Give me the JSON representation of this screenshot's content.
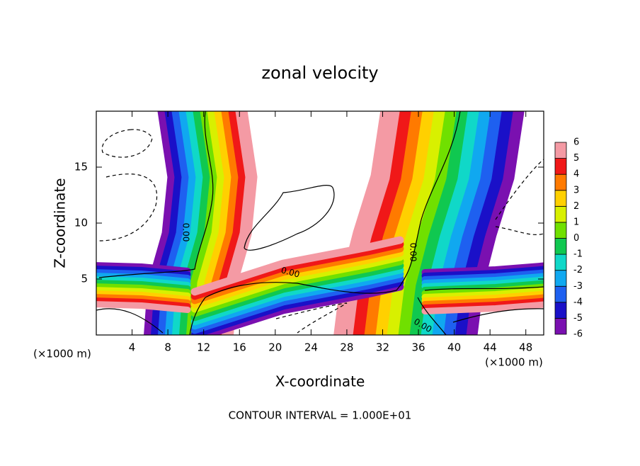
{
  "chart_data": {
    "type": "contour",
    "title": "zonal velocity",
    "xlabel": "X-coordinate",
    "ylabel": "Z-coordinate",
    "xunit": "(×1000 m)",
    "footer": "CONTOUR INTERVAL = 1.000E+01",
    "contour_label": "0.00",
    "xlim": [
      0,
      50
    ],
    "xticks": [
      4,
      8,
      12,
      16,
      20,
      24,
      28,
      32,
      36,
      40,
      44,
      48
    ],
    "ylim": [
      0,
      20
    ],
    "yticks": [
      5,
      10,
      15
    ],
    "colorbar": {
      "levels": [
        -6,
        -5,
        -4,
        -3,
        -2,
        -1,
        0,
        1,
        2,
        3,
        4,
        5,
        6
      ],
      "colors": [
        "#7a10b0",
        "#1a10c8",
        "#1e60f0",
        "#10a8f0",
        "#10d8c8",
        "#10c850",
        "#70e000",
        "#d8f000",
        "#ffd000",
        "#ff7a00",
        "#f01818",
        "#f49aa4"
      ]
    }
  }
}
